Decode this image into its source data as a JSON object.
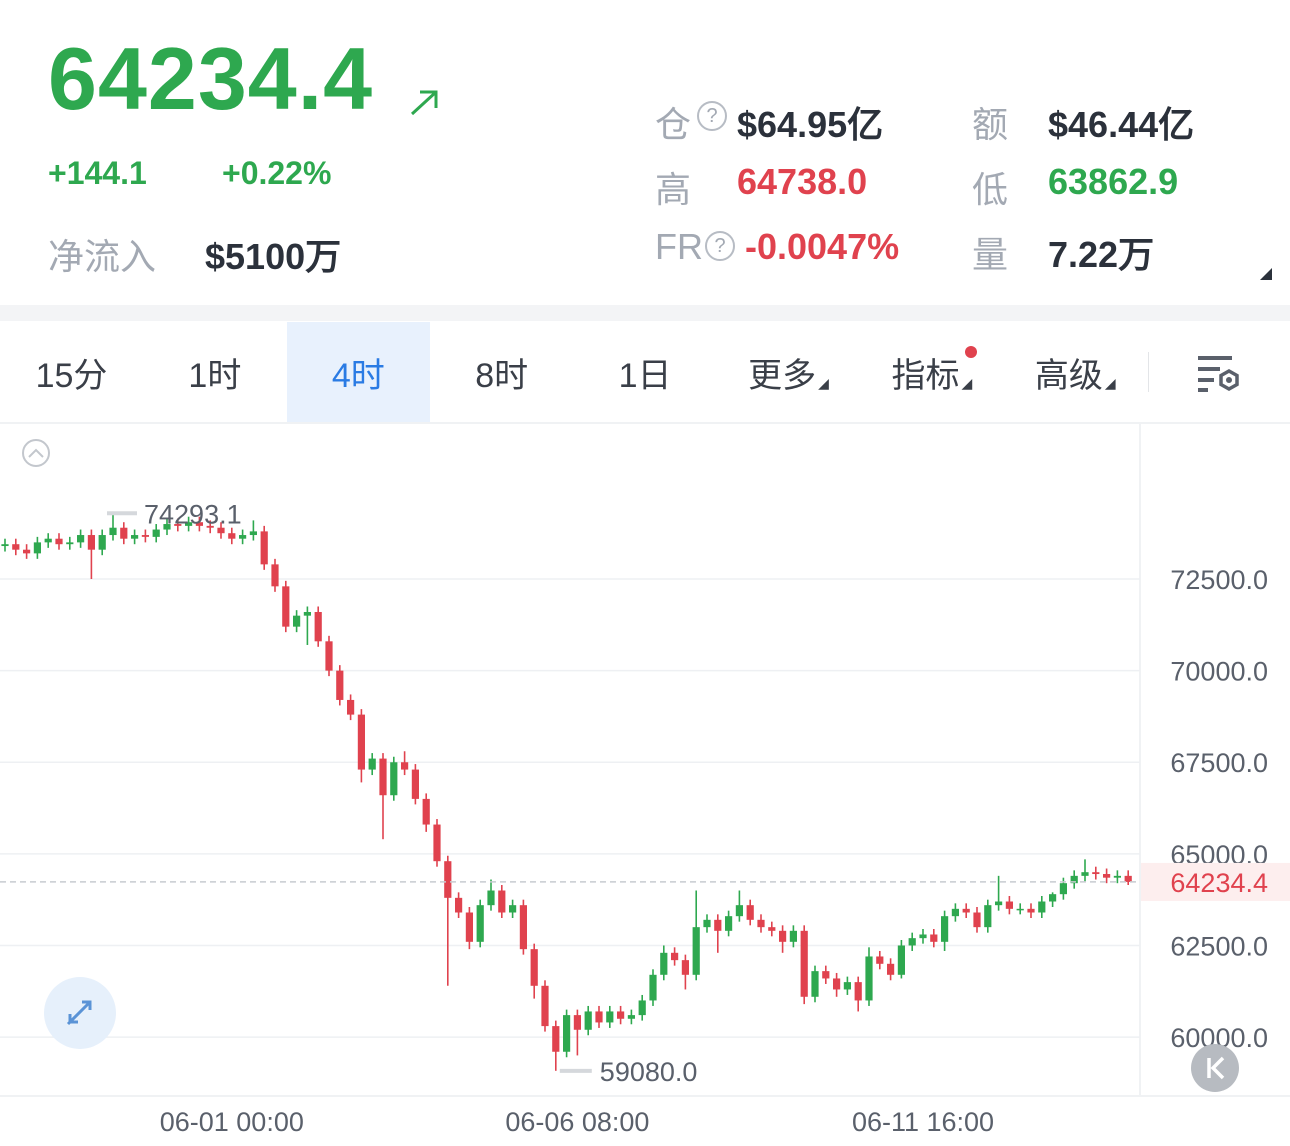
{
  "header": {
    "price": "64234.4",
    "change": "+144.1",
    "change_pct": "+0.22%",
    "net_inflow_label": "净流入",
    "net_inflow_value": "$5100万",
    "stats": [
      {
        "label": "仓",
        "value": "$64.95亿"
      },
      {
        "label": "额",
        "value": "$46.44亿"
      },
      {
        "label": "高",
        "value": "64738.0"
      },
      {
        "label": "低",
        "value": "63862.9"
      },
      {
        "label": "FR",
        "value": "-0.0047%"
      },
      {
        "label": "量",
        "value": "7.22万"
      }
    ]
  },
  "tabs": {
    "items": [
      "15分",
      "1时",
      "4时",
      "8时",
      "1日",
      "更多",
      "指标",
      "高级"
    ],
    "active": 2
  },
  "chart_data": {
    "type": "candlestick",
    "categories": [
      null,
      null,
      null,
      null,
      null,
      null,
      null,
      null,
      null,
      null,
      null,
      null,
      null,
      null,
      null,
      null,
      null,
      null,
      null,
      null,
      null,
      "06-01 00:00",
      null,
      null,
      null,
      null,
      null,
      null,
      null,
      null,
      null,
      null,
      null,
      null,
      null,
      null,
      null,
      null,
      null,
      null,
      null,
      null,
      null,
      null,
      null,
      null,
      null,
      null,
      null,
      null,
      null,
      null,
      null,
      "06-06 08:00",
      null,
      null,
      null,
      null,
      null,
      null,
      null,
      null,
      null,
      null,
      null,
      null,
      null,
      null,
      null,
      null,
      null,
      null,
      null,
      null,
      null,
      null,
      null,
      null,
      null,
      null,
      null,
      null,
      null,
      null,
      null,
      "06-11 16:00",
      null,
      null,
      null,
      null,
      null,
      null,
      null,
      null,
      null,
      null,
      null,
      null,
      null,
      null,
      null,
      null,
      null,
      null,
      null
    ],
    "open": [
      73400,
      73450,
      73300,
      73200,
      73500,
      73600,
      73450,
      73500,
      73700,
      73300,
      73700,
      73900,
      73600,
      73700,
      73650,
      73850,
      74000,
      73950,
      74050,
      73950,
      73900,
      73750,
      73600,
      73700,
      73800,
      72900,
      72300,
      71200,
      71500,
      71600,
      70800,
      70000,
      69200,
      68800,
      67300,
      67600,
      66600,
      67500,
      67300,
      66500,
      65800,
      64800,
      63800,
      63400,
      62600,
      63600,
      64000,
      63400,
      63600,
      62400,
      61400,
      60300,
      59600,
      60600,
      60200,
      60700,
      60400,
      60700,
      60500,
      60600,
      61000,
      61700,
      62300,
      62100,
      61700,
      63000,
      63200,
      62900,
      63300,
      63600,
      63200,
      63000,
      62900,
      62600,
      62900,
      61100,
      61800,
      61600,
      61300,
      61500,
      61000,
      62200,
      62000,
      61700,
      62500,
      62700,
      62800,
      62600,
      63300,
      63500,
      63400,
      63000,
      63600,
      63700,
      63500,
      63500,
      63400,
      63700,
      63900,
      64200,
      64400,
      64500,
      64450,
      64350,
      64400
    ],
    "high": [
      73600,
      73600,
      73450,
      73650,
      73750,
      73750,
      73650,
      73850,
      73850,
      73850,
      74293.1,
      74050,
      73850,
      73850,
      74000,
      74150,
      74150,
      74200,
      74200,
      74100,
      74050,
      73900,
      73850,
      74100,
      73950,
      73050,
      72450,
      71650,
      71750,
      71750,
      70950,
      70150,
      69350,
      68950,
      67750,
      67750,
      67650,
      67800,
      67450,
      66650,
      65950,
      64950,
      63950,
      63550,
      63750,
      64300,
      64150,
      63750,
      63750,
      62550,
      61550,
      60450,
      60750,
      60750,
      60850,
      60850,
      60850,
      60850,
      60750,
      61150,
      61850,
      62500,
      62450,
      62250,
      64000,
      63350,
      63350,
      63450,
      64000,
      63750,
      63350,
      63150,
      63050,
      63050,
      63050,
      61950,
      61950,
      61750,
      61650,
      61650,
      62450,
      62350,
      62150,
      62650,
      62850,
      62950,
      62950,
      63450,
      63650,
      63650,
      63550,
      63750,
      64400,
      63850,
      63650,
      63650,
      63850,
      63950,
      64350,
      64550,
      64850,
      64650,
      64600,
      64550,
      64550
    ],
    "low": [
      73250,
      73150,
      73050,
      73050,
      73350,
      73300,
      73300,
      73350,
      72500,
      73150,
      73550,
      73450,
      73450,
      73500,
      73500,
      73700,
      73800,
      73800,
      73800,
      73750,
      73600,
      73450,
      73450,
      73550,
      72750,
      72150,
      71050,
      71050,
      70700,
      70650,
      69850,
      69050,
      68650,
      66950,
      67150,
      65400,
      66450,
      67150,
      66350,
      65600,
      64650,
      61400,
      63250,
      62400,
      62450,
      63450,
      63250,
      63250,
      62250,
      61050,
      60150,
      59080.0,
      59450,
      59500,
      60050,
      60250,
      60250,
      60350,
      60350,
      60450,
      60850,
      61550,
      61950,
      61300,
      61550,
      62850,
      62300,
      62750,
      63150,
      63050,
      62850,
      62750,
      62300,
      62450,
      60900,
      60950,
      61450,
      61100,
      61150,
      60700,
      60850,
      61850,
      61550,
      61600,
      62350,
      62550,
      62450,
      62350,
      63150,
      63250,
      62850,
      62850,
      63450,
      63350,
      63350,
      63250,
      63250,
      63550,
      63750,
      64050,
      64250,
      64300,
      64200,
      64200,
      64150
    ],
    "close": [
      73450,
      73300,
      73200,
      73500,
      73600,
      73450,
      73500,
      73700,
      73300,
      73700,
      73900,
      73600,
      73700,
      73650,
      73850,
      74000,
      73950,
      74050,
      73950,
      73900,
      73750,
      73600,
      73700,
      73800,
      72900,
      72300,
      71200,
      71500,
      71600,
      70800,
      70000,
      69200,
      68800,
      67300,
      67600,
      66600,
      67500,
      67300,
      66500,
      65800,
      64800,
      63800,
      63400,
      62600,
      63600,
      64000,
      63400,
      63600,
      62400,
      61400,
      60300,
      59600,
      60600,
      60200,
      60700,
      60400,
      60700,
      60500,
      60600,
      61000,
      61700,
      62300,
      62100,
      61700,
      63000,
      63200,
      62900,
      63300,
      63600,
      63200,
      63000,
      62900,
      62600,
      62900,
      61100,
      61800,
      61600,
      61300,
      61500,
      61000,
      62200,
      62000,
      61700,
      62500,
      62700,
      62800,
      62600,
      63300,
      63500,
      63400,
      63000,
      63600,
      63700,
      63500,
      63500,
      63400,
      63700,
      63900,
      64200,
      64400,
      64500,
      64450,
      64350,
      64400,
      64234.4
    ],
    "ylim": [
      58420,
      76730
    ],
    "yticks": [
      {
        "value": 60000,
        "label": "60000.0"
      },
      {
        "value": 62500,
        "label": "62500.0"
      },
      {
        "value": 65000,
        "label": "65000.0"
      },
      {
        "value": 67500,
        "label": "67500.0"
      },
      {
        "value": 70000,
        "label": "70000.0"
      },
      {
        "value": 72500,
        "label": "72500.0"
      }
    ],
    "max_label": "74293.1",
    "min_label": "59080.0",
    "last_label": "64234.4",
    "up_color": "#2ea84f",
    "down_color": "#e0424e",
    "grid": true
  }
}
